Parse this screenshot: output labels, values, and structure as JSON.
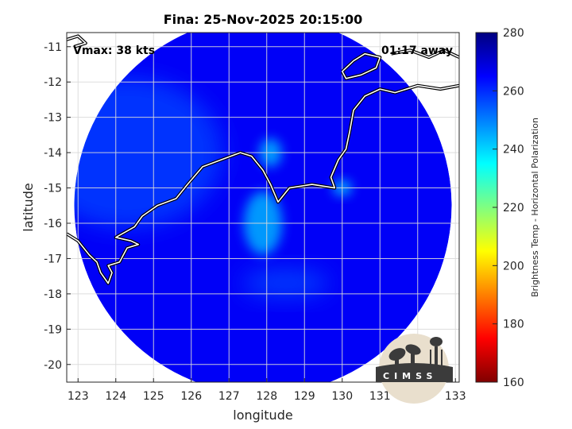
{
  "chart_data": {
    "type": "heatmap",
    "title": "Fina: 25-Nov-2025 20:15:00",
    "xlabel": "longitude",
    "ylabel": "latitude",
    "xlim": [
      122.7,
      133.1
    ],
    "ylim": [
      -20.5,
      -10.6
    ],
    "xticks": [
      123,
      124,
      125,
      126,
      127,
      128,
      129,
      130,
      131,
      132,
      133
    ],
    "yticks": [
      -11,
      -12,
      -13,
      -14,
      -15,
      -16,
      -17,
      -18,
      -19,
      -20
    ],
    "grid": true,
    "annotations": {
      "left": "Vmax: 38 kts",
      "right": "01:17 away"
    },
    "colorbar": {
      "label": "Brightness Temp - Horizontal Polarization",
      "range": [
        160,
        280
      ],
      "ticks": [
        280,
        260,
        240,
        220,
        200,
        180,
        160
      ],
      "colormap": "jet"
    },
    "swath": {
      "center": [
        127.9,
        -15.5
      ],
      "radius_deg": 5.0
    },
    "background_tb": 266,
    "warm_regions": [
      {
        "area": "western swath",
        "lon": 124.3,
        "lat": -14.0,
        "tb": 258
      },
      {
        "area": "coast near 128E",
        "lon": 128.1,
        "lat": -14.0,
        "tb": 246
      },
      {
        "area": "central cell",
        "lon": 127.9,
        "lat": -16.0,
        "tb": 244
      },
      {
        "area": "coast near 130E",
        "lon": 130.0,
        "lat": -15.0,
        "tb": 245
      },
      {
        "area": "southern band",
        "lon": 128.5,
        "lat": -17.7,
        "tb": 256
      }
    ],
    "coastline": [
      [
        [
          122.7,
          -16.3
        ],
        [
          123.0,
          -16.5
        ],
        [
          123.3,
          -16.9
        ],
        [
          123.5,
          -17.1
        ],
        [
          123.6,
          -17.4
        ],
        [
          123.8,
          -17.7
        ],
        [
          123.9,
          -17.4
        ],
        [
          123.8,
          -17.2
        ],
        [
          124.1,
          -17.1
        ],
        [
          124.3,
          -16.7
        ],
        [
          124.6,
          -16.6
        ],
        [
          124.4,
          -16.5
        ],
        [
          124.0,
          -16.4
        ],
        [
          124.5,
          -16.1
        ],
        [
          124.7,
          -15.8
        ],
        [
          125.1,
          -15.5
        ],
        [
          125.6,
          -15.3
        ],
        [
          125.9,
          -14.9
        ],
        [
          126.3,
          -14.4
        ],
        [
          126.8,
          -14.2
        ],
        [
          127.3,
          -14.0
        ],
        [
          127.6,
          -14.1
        ],
        [
          127.9,
          -14.5
        ],
        [
          128.1,
          -14.9
        ],
        [
          128.3,
          -15.4
        ],
        [
          128.6,
          -15.0
        ],
        [
          129.2,
          -14.9
        ],
        [
          129.8,
          -15.0
        ],
        [
          129.7,
          -14.7
        ],
        [
          129.9,
          -14.2
        ],
        [
          130.1,
          -13.9
        ],
        [
          130.2,
          -13.4
        ],
        [
          130.3,
          -12.8
        ],
        [
          130.6,
          -12.4
        ],
        [
          131.0,
          -12.2
        ],
        [
          131.4,
          -12.3
        ],
        [
          132.0,
          -12.1
        ],
        [
          132.6,
          -12.2
        ],
        [
          133.1,
          -12.1
        ]
      ],
      [
        [
          130.0,
          -11.7
        ],
        [
          130.3,
          -11.4
        ],
        [
          130.6,
          -11.2
        ],
        [
          131.0,
          -11.3
        ],
        [
          130.9,
          -11.6
        ],
        [
          130.5,
          -11.8
        ],
        [
          130.1,
          -11.9
        ],
        [
          130.0,
          -11.7
        ]
      ],
      [
        [
          131.3,
          -11.2
        ],
        [
          131.8,
          -11.1
        ],
        [
          132.3,
          -11.3
        ],
        [
          132.7,
          -11.1
        ],
        [
          133.1,
          -11.3
        ]
      ],
      [
        [
          122.7,
          -10.8
        ],
        [
          123.0,
          -10.7
        ],
        [
          123.2,
          -10.9
        ],
        [
          122.9,
          -11.0
        ]
      ]
    ],
    "logo_text": "CIMSS"
  }
}
